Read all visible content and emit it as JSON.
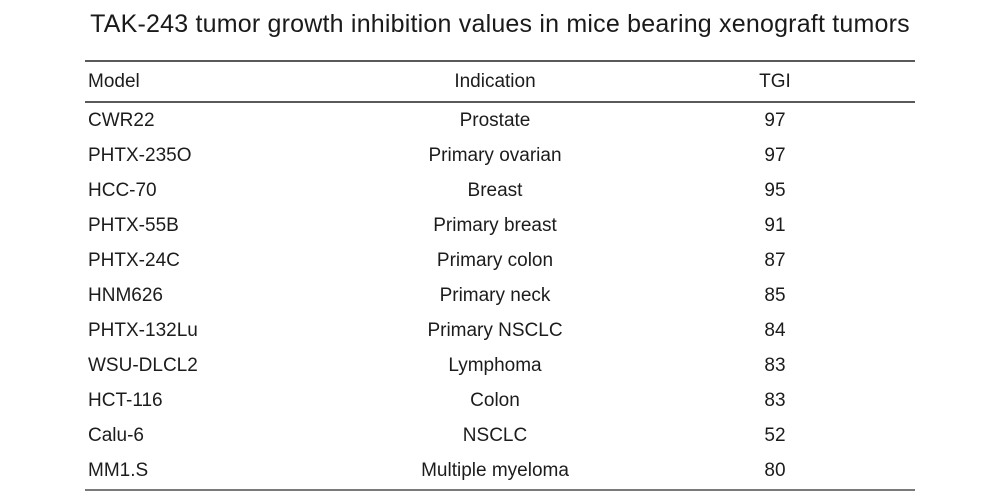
{
  "title": "TAK-243 tumor growth inhibition values in mice bearing xenograft tumors",
  "colors": {
    "background": "#ffffff",
    "text": "#1a1a1a",
    "rule_dark": "#5a5a5a",
    "rule_bottom": "#7a7a7a"
  },
  "chart_data": {
    "type": "table",
    "title": "TAK-243 tumor growth inhibition values in mice bearing xenograft tumors",
    "columns": [
      "Model",
      "Indication",
      "TGI"
    ],
    "rows": [
      {
        "model": "CWR22",
        "indication": "Prostate",
        "tgi": "97"
      },
      {
        "model": "PHTX-235O",
        "indication": "Primary ovarian",
        "tgi": "97"
      },
      {
        "model": "HCC-70",
        "indication": "Breast",
        "tgi": "95"
      },
      {
        "model": "PHTX-55B",
        "indication": "Primary breast",
        "tgi": "91"
      },
      {
        "model": "PHTX-24C",
        "indication": "Primary colon",
        "tgi": "87"
      },
      {
        "model": "HNM626",
        "indication": "Primary neck",
        "tgi": "85"
      },
      {
        "model": "PHTX-132Lu",
        "indication": "Primary NSCLC",
        "tgi": "84"
      },
      {
        "model": "WSU-DLCL2",
        "indication": "Lymphoma",
        "tgi": "83"
      },
      {
        "model": "HCT-116",
        "indication": "Colon",
        "tgi": "83"
      },
      {
        "model": "Calu-6",
        "indication": "NSCLC",
        "tgi": "52"
      },
      {
        "model": "MM1.S",
        "indication": "Multiple myeloma",
        "tgi": "80"
      }
    ]
  }
}
